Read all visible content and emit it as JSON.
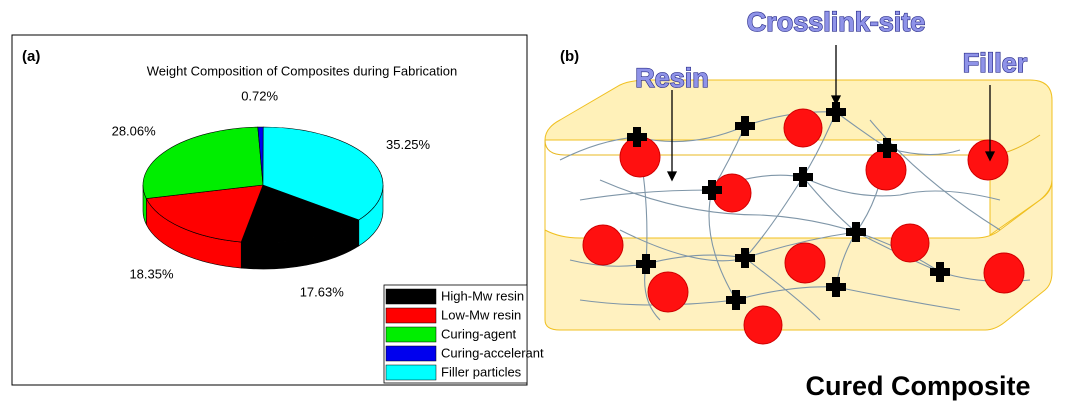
{
  "chart_data": {
    "type": "pie",
    "title": "Weight Composition of Composites during Fabrication",
    "panel_label": "(a)",
    "categories": [
      "High-Mw resin",
      "Low-Mw resin",
      "Curing-agent",
      "Curing-accelerant",
      "Filler particles"
    ],
    "values": [
      17.63,
      18.35,
      28.06,
      0.72,
      35.25
    ],
    "value_labels": [
      "17.63%",
      "18.35%",
      "28.06%",
      "0.72%",
      "35.25%"
    ],
    "colors": [
      "#000000",
      "#ff0000",
      "#00ee00",
      "#0000ee",
      "#00ffff"
    ],
    "legend": "lower right"
  },
  "diagram": {
    "panel_label": "(b)",
    "labels": {
      "crosslink": "Crosslink-site",
      "resin": "Resin",
      "filler": "Filler"
    },
    "caption": "Cured Composite"
  }
}
